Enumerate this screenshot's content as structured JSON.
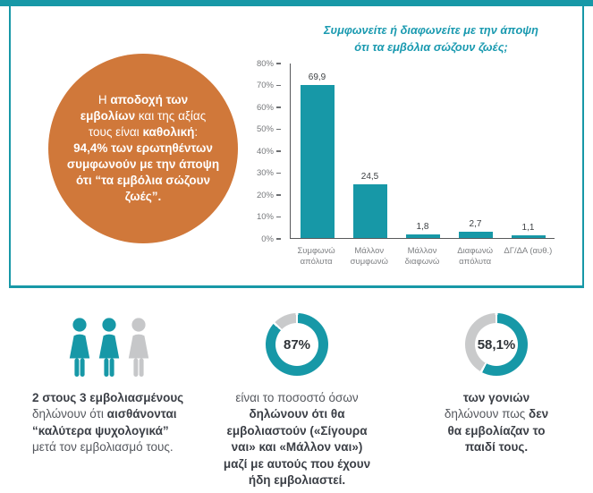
{
  "colors": {
    "teal": "#1798a7",
    "orange": "#d0783a",
    "gray": "#c9cacb",
    "dark_text": "#3b3f46",
    "body_text": "#55585e"
  },
  "top_panel": {
    "circle": {
      "lines": [
        [
          {
            "t": "Η ",
            "b": false
          },
          {
            "t": "αποδοχή των",
            "b": true
          }
        ],
        [
          {
            "t": "εμβολίων",
            "b": true
          },
          {
            "t": " και της αξίας",
            "b": false
          }
        ],
        [
          {
            "t": "τους είναι ",
            "b": false
          },
          {
            "t": "καθολική",
            "b": true
          },
          {
            "t": ":",
            "b": false
          }
        ],
        [
          {
            "t": "94,4% των ερωτηθέντων",
            "b": true
          }
        ],
        [
          {
            "t": "συμφωνούν με την άποψη",
            "b": true
          }
        ],
        [
          {
            "t": "ότι “τα εμβόλια σώζουν",
            "b": true
          }
        ],
        [
          {
            "t": "ζωές”.",
            "b": true
          }
        ]
      ]
    }
  },
  "chart_data": {
    "type": "bar",
    "title": "Συμφωνείτε ή διαφωνείτε με την άποψη\nότι τα εμβόλια σώζουν ζωές;",
    "categories": [
      "Συμφωνώ\nαπόλυτα",
      "Μάλλον\nσυμφωνώ",
      "Μάλλον\nδιαφωνώ",
      "Διαφωνώ\nαπόλυτα",
      "ΔΓ/ΔΑ (αυθ.)"
    ],
    "values": [
      69.9,
      24.5,
      1.8,
      2.7,
      1.1
    ],
    "value_labels": [
      "69,9",
      "24,5",
      "1,8",
      "2,7",
      "1,1"
    ],
    "xlabel": "",
    "ylabel": "",
    "ylim": [
      0,
      80
    ],
    "yticks_top_to_bottom": [
      "80%",
      "70%",
      "60%",
      "50%",
      "40%",
      "30%",
      "20%",
      "10%",
      "0%"
    ],
    "grid": false,
    "legend": false,
    "bar_color": "#1798a7"
  },
  "bottom": {
    "people": {
      "icon_colors": [
        "#1798a7",
        "#1798a7",
        "#c6c7c9"
      ],
      "lines": [
        [
          {
            "t": "2 στους 3 εμβολιασμένους",
            "b": true
          }
        ],
        [
          {
            "t": "δηλώνουν ότι ",
            "b": false
          },
          {
            "t": "αισθάνονται",
            "b": true
          }
        ],
        [
          {
            "t": "“καλύτερα ψυχολογικά”",
            "b": true
          }
        ],
        [
          {
            "t": "μετά τον εμβολιασμό τους.",
            "b": false
          }
        ]
      ]
    },
    "donuts": [
      {
        "percent": 87,
        "label": "87%",
        "lines": [
          [
            {
              "t": "είναι το ποσοστό όσων",
              "b": false
            }
          ],
          [
            {
              "t": "δηλώνουν ότι θα",
              "b": true
            }
          ],
          [
            {
              "t": "εμβολιαστούν («Σίγουρα",
              "b": true
            }
          ],
          [
            {
              "t": "ναι» και «Μάλλον ναι»)",
              "b": true
            }
          ],
          [
            {
              "t": "μαζί με αυτούς που έχουν",
              "b": true
            }
          ],
          [
            {
              "t": "ήδη εμβολιαστεί.",
              "b": true
            }
          ]
        ]
      },
      {
        "percent": 58.1,
        "label": "58,1%",
        "lines": [
          [
            {
              "t": "των γονιών",
              "b": true
            }
          ],
          [
            {
              "t": "δηλώνουν πως ",
              "b": false
            },
            {
              "t": "δεν",
              "b": true
            }
          ],
          [
            {
              "t": "θα εμβολίαζαν το",
              "b": true
            }
          ],
          [
            {
              "t": "παιδί τους.",
              "b": true
            }
          ]
        ]
      }
    ]
  }
}
